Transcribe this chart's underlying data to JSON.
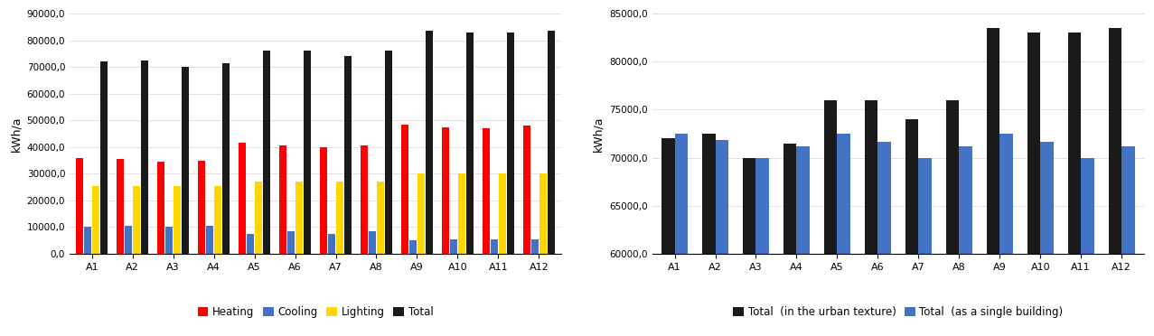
{
  "categories": [
    "A1",
    "A2",
    "A3",
    "A4",
    "A5",
    "A6",
    "A7",
    "A8",
    "A9",
    "A10",
    "A11",
    "A12"
  ],
  "heating": [
    36000,
    35500,
    34500,
    35000,
    41500,
    40500,
    40000,
    40500,
    48500,
    47500,
    47000,
    48000
  ],
  "cooling": [
    10000,
    10500,
    10000,
    10500,
    7500,
    8500,
    7500,
    8500,
    5000,
    5500,
    5500,
    5500
  ],
  "lighting": [
    25500,
    25500,
    25500,
    25500,
    27000,
    27000,
    27000,
    27000,
    30000,
    30000,
    30000,
    30000
  ],
  "total_urban": [
    72000,
    72500,
    70000,
    71500,
    76000,
    76000,
    74000,
    76000,
    83500,
    83000,
    83000,
    83500
  ],
  "heating_color": "#FF0000",
  "cooling_color": "#4472C4",
  "lighting_color": "#FFD700",
  "total_color": "#1A1A1A",
  "chart1_ylim": [
    0,
    90000
  ],
  "chart1_yticks": [
    0,
    10000,
    20000,
    30000,
    40000,
    50000,
    60000,
    70000,
    80000,
    90000
  ],
  "chart1_ylabel": "kWh/a",
  "chart2_ylim": [
    60000,
    85000
  ],
  "chart2_yticks": [
    60000,
    65000,
    70000,
    75000,
    80000,
    85000
  ],
  "chart2_ylabel": "kWh/a",
  "total_single": [
    72500,
    71800,
    70000,
    71200,
    72500,
    71700,
    70000,
    71200,
    72500,
    71700,
    70000,
    71200
  ],
  "urban_color": "#1A1A1A",
  "single_color": "#4472C4",
  "legend1": [
    "Heating",
    "Cooling",
    "Lighting",
    "Total"
  ],
  "legend2": [
    "Total  (in the urban texture)",
    "Total  (as a single building)"
  ]
}
